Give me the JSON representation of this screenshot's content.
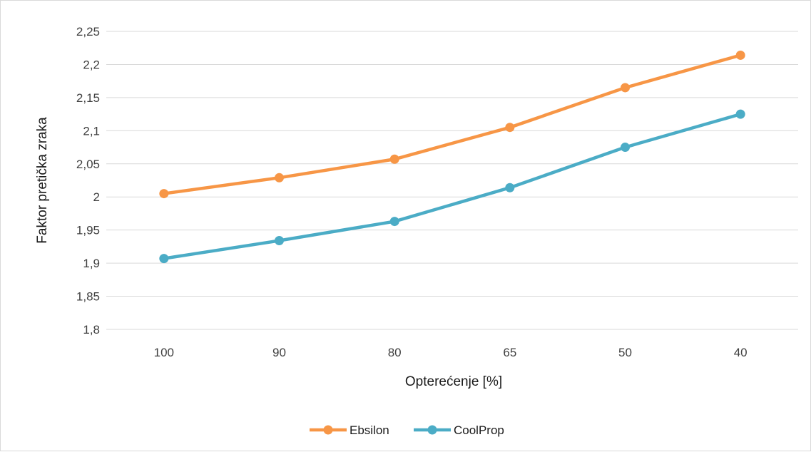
{
  "chart_data": {
    "type": "line",
    "xlabel": "Opterećenje [%]",
    "ylabel": "Faktor pretička zraka",
    "categories": [
      "100",
      "90",
      "80",
      "65",
      "50",
      "40"
    ],
    "ylim": [
      1.8,
      2.25
    ],
    "ytick_values": [
      1.8,
      1.85,
      1.9,
      1.95,
      2.0,
      2.05,
      2.1,
      2.15,
      2.2,
      2.25
    ],
    "ytick_labels": [
      "1,8",
      "1,85",
      "1,9",
      "1,95",
      "2",
      "2,05",
      "2,1",
      "2,15",
      "2,2",
      "2,25"
    ],
    "grid": true,
    "legend_position": "bottom",
    "series": [
      {
        "name": "Ebsilon",
        "color": "#f79646",
        "values": [
          2.005,
          2.029,
          2.057,
          2.105,
          2.165,
          2.214
        ]
      },
      {
        "name": "CoolProp",
        "color": "#4bacc6",
        "values": [
          1.907,
          1.934,
          1.963,
          2.014,
          2.075,
          2.125
        ]
      }
    ]
  }
}
